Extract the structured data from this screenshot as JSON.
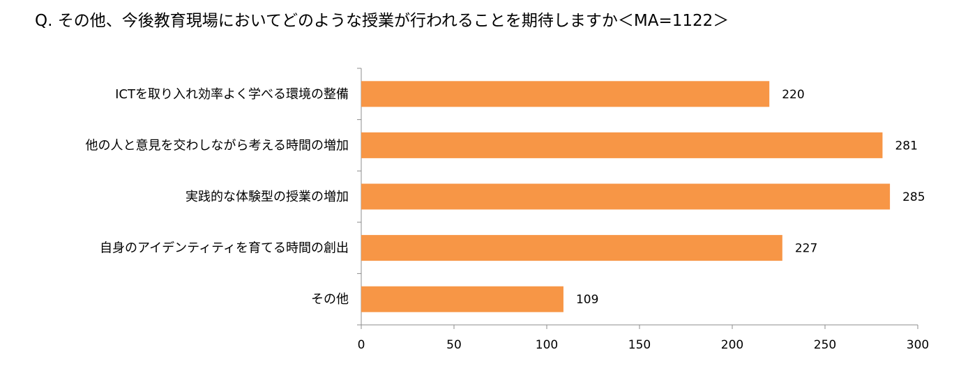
{
  "chart_data": {
    "type": "bar",
    "orientation": "horizontal",
    "title": "Q. その他、今後教育現場においてどのような授業が行われることを期待しますか＜MA=1122＞",
    "categories": [
      "ICTを取り入れ効率よく学べる環境の整備",
      "他の人と意見を交わしながら考える時間の増加",
      "実践的な体験型の授業の増加",
      "自身のアイデンティティを育てる時間の創出",
      "その他"
    ],
    "values": [
      220,
      281,
      285,
      227,
      109
    ],
    "xlim": [
      0,
      300
    ],
    "xticks": [
      0,
      50,
      100,
      150,
      200,
      250,
      300
    ],
    "grid": false,
    "legend": "none",
    "bar_color": "#F79646",
    "data_labels": true
  }
}
